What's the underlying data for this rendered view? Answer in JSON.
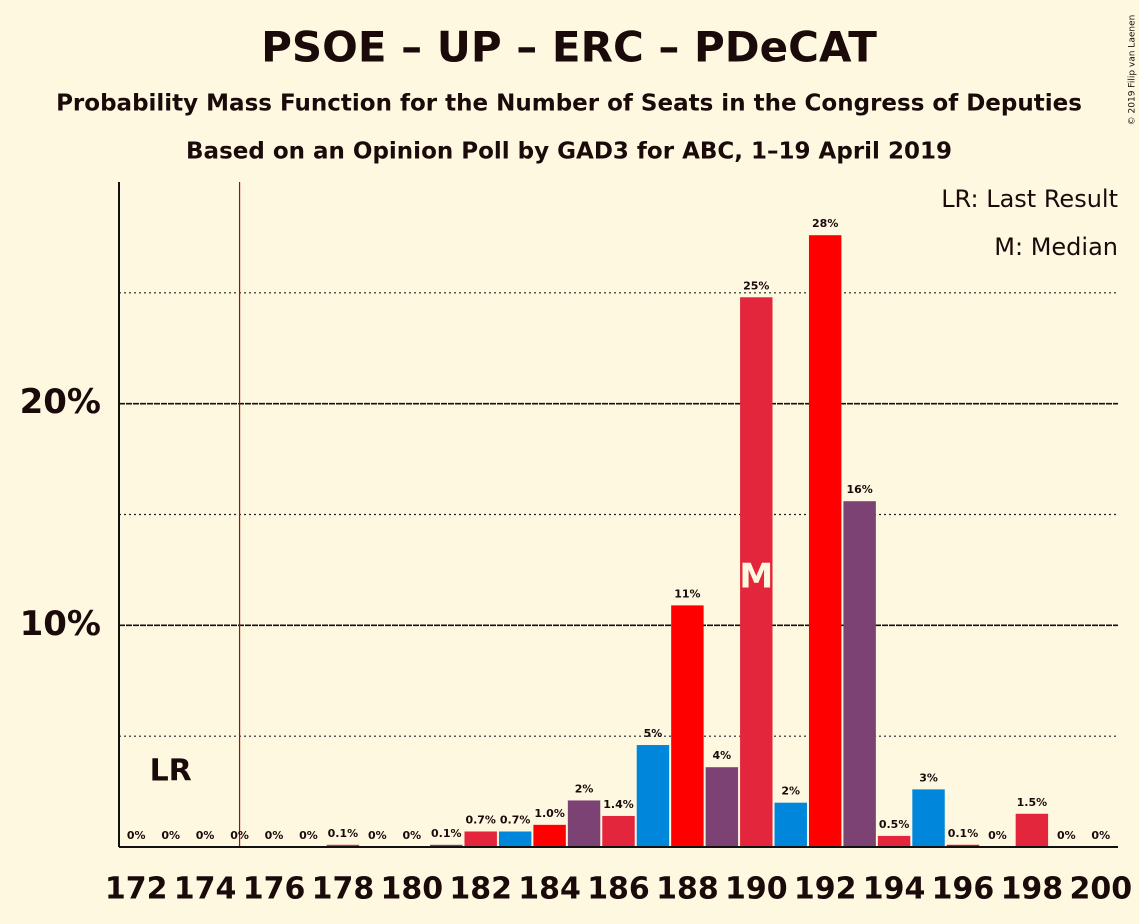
{
  "chart_data": {
    "type": "bar",
    "title": "PSOE – UP – ERC – PDeCAT",
    "subtitle": "Probability Mass Function for the Number of Seats in the Congress of Deputies",
    "subtitle2": "Based on an Opinion Poll by GAD3 for ABC, 1–19 April 2019",
    "copyright": "© 2019 Filip van Laenen",
    "categories": [
      "172",
      null,
      "174",
      null,
      "176",
      null,
      "178",
      null,
      "180",
      null,
      "182",
      null,
      "184",
      null,
      "186",
      null,
      "188",
      null,
      "190",
      null,
      "192",
      null,
      "194",
      null,
      "196",
      null,
      "198",
      null,
      "200"
    ],
    "values": [
      0,
      0,
      0,
      0,
      0,
      0,
      0.1,
      0,
      0,
      0.1,
      0.7,
      0.7,
      1.0,
      2.1,
      1.4,
      4.6,
      10.9,
      3.6,
      24.8,
      2.0,
      27.6,
      15.6,
      0.5,
      2.6,
      0.1,
      0,
      1.5,
      0,
      0
    ],
    "value_labels": [
      "0%",
      "0%",
      "0%",
      "0%",
      "0%",
      "0%",
      "0.1%",
      "0%",
      "0%",
      "0.1%",
      "0.7%",
      "0.7%",
      "1.0%",
      "2%",
      "1.4%",
      "5%",
      "11%",
      "4%",
      "25%",
      "2%",
      "28%",
      "16%",
      "0.5%",
      "3%",
      "0.1%",
      "0%",
      "1.5%",
      "0%",
      "0%"
    ],
    "colors": [
      "#ff0000",
      "#7b4273",
      "#e3263b",
      "#0087dc"
    ],
    "ylim": [
      0,
      30
    ],
    "yticks": [
      {
        "value": 10,
        "label": "10%"
      },
      {
        "value": 20,
        "label": "20%"
      }
    ],
    "yticks_minor": [
      5,
      15,
      25
    ],
    "last_result": {
      "index": 4,
      "label": "LR",
      "legend": "LR: Last Result"
    },
    "median": {
      "index": 18,
      "label": "M",
      "legend": "M: Median"
    }
  }
}
